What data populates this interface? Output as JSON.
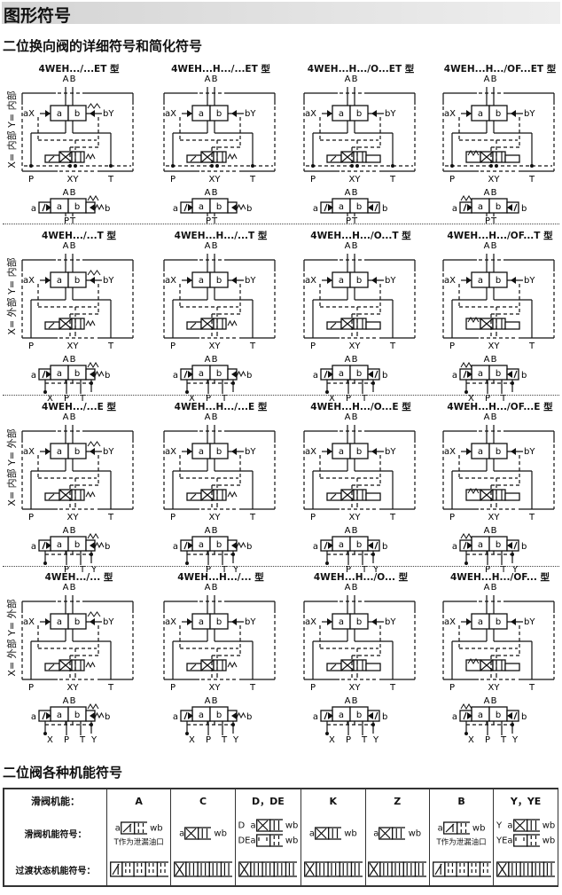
{
  "header": {
    "title": "图形符号"
  },
  "section1": {
    "title": "二位换向阀的详细符号和简化符号"
  },
  "labels": {
    "A": "A",
    "B": "B",
    "a": "a",
    "b": "b",
    "aX": "aX",
    "bY": "bY",
    "P": "P",
    "XY": "XY",
    "T": "T",
    "X": "X",
    "Y": "Y"
  },
  "rows": [
    {
      "side": "X= 内部  Y= 内部",
      "ext": "none",
      "titles": [
        "4WEH.../...ET 型",
        "4WEH...H.../...ET 型",
        "4WEH...H.../O...ET 型",
        "4WEH...H.../OF...ET 型"
      ]
    },
    {
      "side": "X= 外部  Y= 内部",
      "ext": "X",
      "titles": [
        "4WEH.../...T 型",
        "4WEH...H.../...T 型",
        "4WEH...H.../O...T 型",
        "4WEH...H.../OF...T 型"
      ]
    },
    {
      "side": "X= 内部  Y= 外部",
      "ext": "Y",
      "titles": [
        "4WEH.../...E 型",
        "4WEH...H.../...E 型",
        "4WEH...H.../O...E 型",
        "4WEH...H.../OF...E 型"
      ]
    },
    {
      "side": "X= 外部  Y= 外部",
      "ext": "XY",
      "titles": [
        "4WEH.../... 型",
        "4WEH...H.../... 型",
        "4WEH...H.../O... 型",
        "4WEH...H.../OF... 型"
      ]
    }
  ],
  "section2": {
    "title": "二位阀各种机能符号"
  },
  "table": {
    "row_labels": [
      "滑阀机能：",
      "滑阀机能符号：",
      "过渡状态机能符号："
    ],
    "columns": [
      {
        "name": "A",
        "symbols": [
          {
            "prefix": "a",
            "suffix": "b",
            "type": "Z"
          }
        ],
        "note": "T作为泄漏油口"
      },
      {
        "name": "C",
        "symbols": [
          {
            "prefix": "a",
            "suffix": "b",
            "type": "X"
          }
        ],
        "note": ""
      },
      {
        "name": "D，DE",
        "symbols": [
          {
            "prefix": "D  a",
            "suffix": "b",
            "type": "X"
          },
          {
            "prefix": "DEa",
            "suffix": "b",
            "type": "D"
          }
        ],
        "note": ""
      },
      {
        "name": "K",
        "symbols": [
          {
            "prefix": "a",
            "suffix": "b",
            "type": "X"
          }
        ],
        "note": ""
      },
      {
        "name": "Z",
        "symbols": [
          {
            "prefix": "a",
            "suffix": "b",
            "type": "X"
          }
        ],
        "note": ""
      },
      {
        "name": "B",
        "symbols": [
          {
            "prefix": "a",
            "suffix": "b",
            "type": "Z"
          }
        ],
        "note": "T作为泄漏油口"
      },
      {
        "name": "Y，YE",
        "symbols": [
          {
            "prefix": "Y  a",
            "suffix": "b",
            "type": "X"
          },
          {
            "prefix": "YEa",
            "suffix": "b",
            "type": "D"
          }
        ],
        "note": ""
      }
    ]
  },
  "colors": {
    "line": "#111111",
    "header_bg": "#dcdcdc"
  }
}
